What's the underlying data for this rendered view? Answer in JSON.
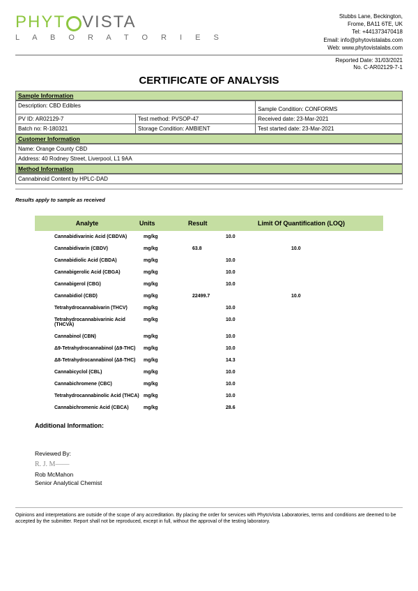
{
  "logo": {
    "p1": "PHYT",
    "p2": "VISTA",
    "lab": "L A B O R A T O R I E S"
  },
  "contact": {
    "line1": "Stubbs Lane, Beckington,",
    "line2": "Frome, BA11 6TE, UK",
    "tel": "Tel: +441373470418",
    "email": "Email: info@phytovistalabs.com",
    "web": "Web: www.phytovistalabs.com"
  },
  "meta": {
    "reported": "Reported Date: 31/03/2021",
    "no": "No. C-AR02129-7-1"
  },
  "title": "CERTIFICATE OF ANALYSIS",
  "sections": {
    "sample": "Sample Information",
    "customer": "Customer Information",
    "method": "Method Information"
  },
  "sample": {
    "desc": "Description: CBD Edibles",
    "cond": "Sample Condition: CONFORMS",
    "pvid": "PV ID: AR02129-7",
    "testmethod": "Test method: PVSOP-47",
    "received": "Received date: 23-Mar-2021",
    "batch": "Batch no: R-180321",
    "storage": "Storage Condition: AMBIENT",
    "started": "Test started date: 23-Mar-2021"
  },
  "customer": {
    "name": "Name:   Orange County CBD",
    "address": "Address:   40 Rodney Street, Liverpool, L1 9AA"
  },
  "method": {
    "content": "Cannabinoid Content by HPLC-DAD"
  },
  "note": "Results apply to sample as received",
  "headers": {
    "analyte": "Analyte",
    "units": "Units",
    "result": "Result",
    "loq": "Limit Of Quantification (LOQ)"
  },
  "rows": [
    {
      "a": "Cannabidivarinic Acid (CBDVA)",
      "u": "mg/kg",
      "r": "<LOQ",
      "l": "10.0"
    },
    {
      "a": "Cannabidivarin (CBDV)",
      "u": "mg/kg",
      "r": "63.8",
      "l": "10.0"
    },
    {
      "a": "Cannabidiolic Acid (CBDA)",
      "u": "mg/kg",
      "r": "<LOQ",
      "l": "10.0"
    },
    {
      "a": "Cannabigerolic Acid (CBGA)",
      "u": "mg/kg",
      "r": "<LOQ",
      "l": "10.0"
    },
    {
      "a": "Cannabigerol (CBG)",
      "u": "mg/kg",
      "r": "<LOQ",
      "l": "10.0"
    },
    {
      "a": "Cannabidiol (CBD)",
      "u": "mg/kg",
      "r": "22499.7",
      "l": "10.0"
    },
    {
      "a": "Tetrahydrocannabivarin (THCV)",
      "u": "mg/kg",
      "r": "<LOQ",
      "l": "10.0"
    },
    {
      "a": "Tetrahydrocannabivarinic Acid (THCVA)",
      "u": "mg/kg",
      "r": "<LOQ",
      "l": "10.0"
    },
    {
      "a": "Cannabinol (CBN)",
      "u": "mg/kg",
      "r": "<LOQ",
      "l": "10.0"
    },
    {
      "a": "Δ9-Tetrahydrocannabinol (Δ9-THC)",
      "u": "mg/kg",
      "r": "<LOQ",
      "l": "10.0"
    },
    {
      "a": "Δ8-Tetrahydrocannabinol (Δ8-THC)",
      "u": "mg/kg",
      "r": "<LOQ",
      "l": "14.3"
    },
    {
      "a": "Cannabicyclol (CBL)",
      "u": "mg/kg",
      "r": "<LOQ",
      "l": "10.0"
    },
    {
      "a": "Cannabichromene (CBC)",
      "u": "mg/kg",
      "r": "<LOQ",
      "l": "10.0"
    },
    {
      "a": "Tetrahydrocannabinolic Acid (THCA)",
      "u": "mg/kg",
      "r": "<LOQ",
      "l": "10.0"
    },
    {
      "a": "Cannabichromenic Acid (CBCA)",
      "u": "mg/kg",
      "r": "<LOQ",
      "l": "28.6"
    }
  ],
  "addl": "Additional Information:",
  "reviewed": {
    "label": "Reviewed By:",
    "sig": "R. J. M——",
    "name": "Rob McMahon",
    "title": "Senior Analytical Chemist"
  },
  "disclaimer": "Opinions and interpretations are outside of the scope of any accreditation. By placing the order for services with PhytoVista Laboratories, terms and conditions are deemed to be accepted by the submitter. Report shall not be reproduced, except in full, without the approval of the testing laboratory."
}
